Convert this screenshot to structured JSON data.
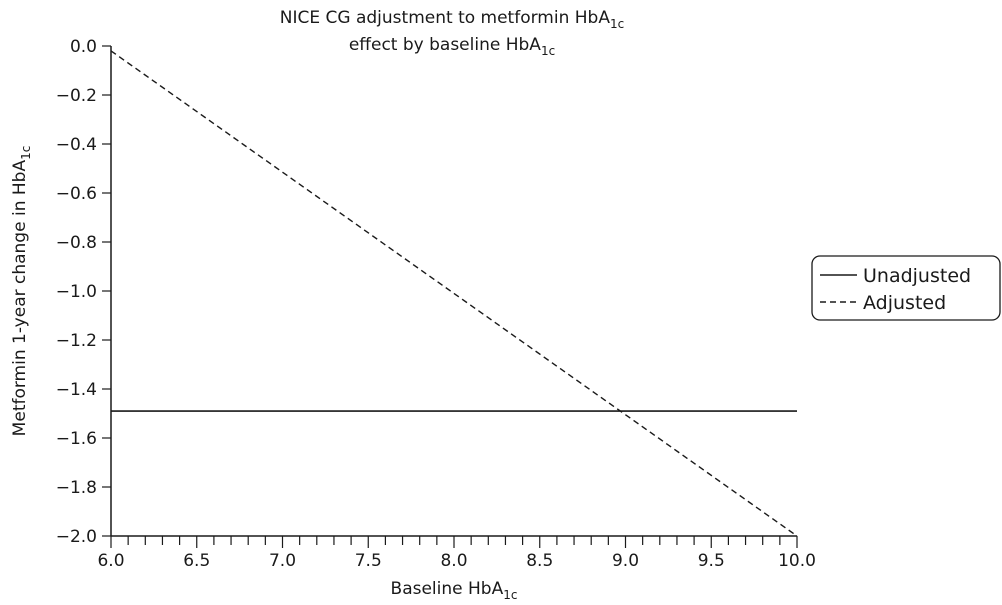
{
  "chart_data": {
    "type": "line",
    "title_line1": "NICE CG adjustment to metformin HbA",
    "title_line1_sub": "1c",
    "title_line2": "effect by baseline HbA",
    "title_line2_sub": "1c",
    "xlabel": "Baseline HbA",
    "xlabel_sub": "1c",
    "ylabel": "Metformin 1-year change in HbA",
    "ylabel_sub": "1c",
    "xlim": [
      6.0,
      10.0
    ],
    "ylim": [
      -2.0,
      0.0
    ],
    "x_ticks": [
      "6.0",
      "6.5",
      "7.0",
      "7.5",
      "8.0",
      "8.5",
      "9.0",
      "9.5",
      "10.0"
    ],
    "x_tick_values": [
      6.0,
      6.5,
      7.0,
      7.5,
      8.0,
      8.5,
      9.0,
      9.5,
      10.0
    ],
    "x_minor_step": 0.1,
    "y_ticks": [
      "0.0",
      "−0.2",
      "−0.4",
      "−0.6",
      "−0.8",
      "−1.0",
      "−1.2",
      "−1.4",
      "−1.6",
      "−1.8",
      "−2.0"
    ],
    "y_tick_values": [
      0.0,
      -0.2,
      -0.4,
      -0.6,
      -0.8,
      -1.0,
      -1.2,
      -1.4,
      -1.6,
      -1.8,
      -2.0
    ],
    "series": [
      {
        "name": "Unadjusted",
        "style": "solid",
        "x": [
          6.0,
          10.0
        ],
        "y": [
          -1.49,
          -1.49
        ]
      },
      {
        "name": "Adjusted",
        "style": "dashed",
        "x": [
          6.0,
          10.0
        ],
        "y": [
          -0.02,
          -2.0
        ]
      }
    ],
    "legend_position": "right",
    "line_color": "#1a1a1a"
  }
}
